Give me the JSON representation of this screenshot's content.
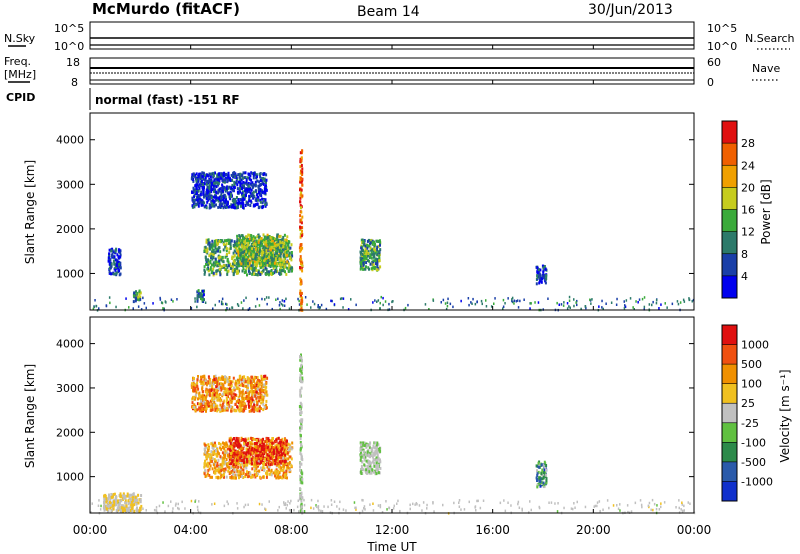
{
  "header": {
    "radar": "McMurdo (fitACF)",
    "beam": "Beam 14",
    "date": "30/Jun/2013"
  },
  "noise_panel": {
    "left_label": "N.Sky",
    "right_label": "N.Search",
    "left_ticks": [
      "10^5",
      "10^0"
    ],
    "right_ticks": [
      "10^5",
      "10^0"
    ]
  },
  "freq_panel": {
    "left_label_top": "Freq.",
    "left_label_unit": "[MHz]",
    "right_label": "Nave",
    "left_ticks": [
      "18",
      "8"
    ],
    "right_ticks": [
      "60",
      "0"
    ]
  },
  "cpid": {
    "label": "CPID",
    "text": "normal (fast) -151 RF"
  },
  "x_axis": {
    "label": "Time UT",
    "ticks": [
      "00:00",
      "04:00",
      "08:00",
      "12:00",
      "16:00",
      "20:00",
      "00:00"
    ]
  },
  "colors": {
    "power_scale": [
      "#0000ee",
      "#1a3fa8",
      "#2c7a6a",
      "#3aaa3a",
      "#c6cc1e",
      "#f0a000",
      "#f06000",
      "#e01010"
    ],
    "velocity_scale": [
      "#e01010",
      "#f05010",
      "#f09000",
      "#f0c020",
      "#c0c0c0",
      "#60c040",
      "#2c8a4a",
      "#2a5aaa",
      "#1030cc"
    ]
  },
  "chart_data": [
    {
      "type": "heatmap",
      "panel": "power",
      "ylabel": "Slant Range [km]",
      "xlabel": "Time UT",
      "yticks": [
        "1000",
        "2000",
        "3000",
        "4000"
      ],
      "ylim": [
        180,
        4600
      ],
      "xlim": [
        0,
        24
      ],
      "colorbar": {
        "label": "Power [dB]",
        "ticks": [
          "4",
          "8",
          "12",
          "16",
          "20",
          "24",
          "28"
        ],
        "range": [
          0,
          30
        ]
      },
      "regions": [
        {
          "t0": 1.7,
          "t1": 2.0,
          "r0": 400,
          "r1": 650,
          "level": 10
        },
        {
          "t0": 4.2,
          "t1": 4.5,
          "r0": 400,
          "r1": 650,
          "level": 8
        },
        {
          "t0": 0.7,
          "t1": 1.2,
          "r0": 1000,
          "r1": 1600,
          "level": 5
        },
        {
          "t0": 4.5,
          "t1": 8.0,
          "r0": 1000,
          "r1": 1800,
          "level": 12
        },
        {
          "t0": 5.8,
          "t1": 7.8,
          "r0": 1200,
          "r1": 1900,
          "level": 14
        },
        {
          "t0": 10.7,
          "t1": 11.5,
          "r0": 1100,
          "r1": 1800,
          "level": 11
        },
        {
          "t0": 17.7,
          "t1": 18.1,
          "r0": 800,
          "r1": 1200,
          "level": 5
        },
        {
          "t0": 4.0,
          "t1": 7.0,
          "r0": 2500,
          "r1": 3300,
          "level": 4
        },
        {
          "t0": 8.3,
          "t1": 8.4,
          "r0": 200,
          "r1": 3800,
          "level": 24
        }
      ]
    },
    {
      "type": "heatmap",
      "panel": "velocity",
      "ylabel": "Slant Range [km]",
      "xlabel": "Time UT",
      "yticks": [
        "1000",
        "2000",
        "3000",
        "4000"
      ],
      "ylim": [
        180,
        4600
      ],
      "xlim": [
        0,
        24
      ],
      "colorbar": {
        "label": "Velocity [m s⁻¹]",
        "ticks": [
          "1000",
          "500",
          "100",
          "25",
          "-25",
          "-100",
          "-500",
          "-1000"
        ],
        "range": [
          -1200,
          1200
        ]
      },
      "regions": [
        {
          "t0": 0.5,
          "t1": 2.0,
          "r0": 250,
          "r1": 650,
          "level": 100
        },
        {
          "t0": 4.5,
          "t1": 8.0,
          "r0": 1000,
          "r1": 1800,
          "level": 400
        },
        {
          "t0": 5.5,
          "t1": 7.8,
          "r0": 1300,
          "r1": 1900,
          "level": 1000
        },
        {
          "t0": 10.7,
          "t1": 11.5,
          "r0": 1100,
          "r1": 1800,
          "level": -100
        },
        {
          "t0": 17.7,
          "t1": 18.1,
          "r0": 800,
          "r1": 1400,
          "level": -500
        },
        {
          "t0": 4.0,
          "t1": 7.0,
          "r0": 2500,
          "r1": 3300,
          "level": 500
        },
        {
          "t0": 8.3,
          "t1": 8.4,
          "r0": 200,
          "r1": 3800,
          "level": -100
        }
      ]
    }
  ]
}
